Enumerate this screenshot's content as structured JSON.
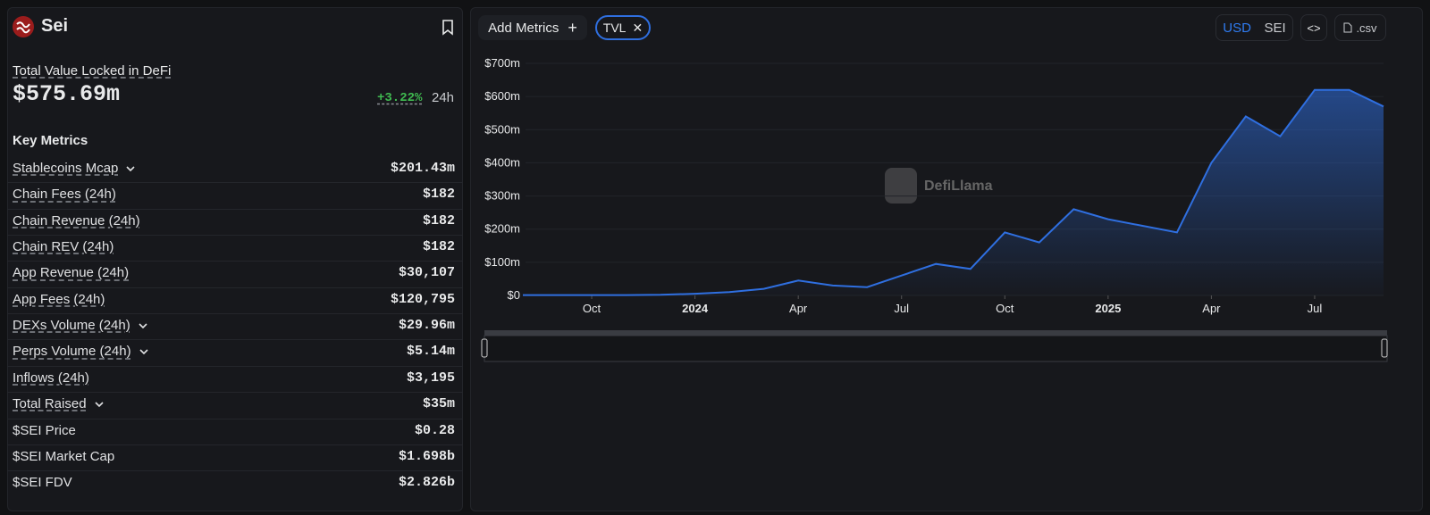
{
  "sidebar": {
    "name": "Sei",
    "tvl_label": "Total Value Locked in DeFi",
    "tvl": "$575.69m",
    "change": "+3.22%",
    "change_period": "24h",
    "section_title": "Key Metrics",
    "metrics": [
      {
        "label": "Stablecoins Mcap",
        "value": "$201.43m",
        "expandable": true,
        "underlined": true
      },
      {
        "label": "Chain Fees (24h)",
        "value": "$182",
        "expandable": false,
        "underlined": true
      },
      {
        "label": "Chain Revenue (24h)",
        "value": "$182",
        "expandable": false,
        "underlined": true
      },
      {
        "label": "Chain REV (24h)",
        "value": "$182",
        "expandable": false,
        "underlined": true
      },
      {
        "label": "App Revenue (24h)",
        "value": "$30,107",
        "expandable": false,
        "underlined": true
      },
      {
        "label": "App Fees (24h)",
        "value": "$120,795",
        "expandable": false,
        "underlined": true
      },
      {
        "label": "DEXs Volume (24h)",
        "value": "$29.96m",
        "expandable": true,
        "underlined": true
      },
      {
        "label": "Perps Volume (24h)",
        "value": "$5.14m",
        "expandable": true,
        "underlined": true
      },
      {
        "label": "Inflows (24h)",
        "value": "$3,195",
        "expandable": false,
        "underlined": true
      },
      {
        "label": "Total Raised",
        "value": "$35m",
        "expandable": true,
        "underlined": true
      },
      {
        "label": "$SEI Price",
        "value": "$0.28",
        "expandable": false,
        "underlined": false
      },
      {
        "label": "$SEI Market Cap",
        "value": "$1.698b",
        "expandable": false,
        "underlined": false
      },
      {
        "label": "$SEI FDV",
        "value": "$2.826b",
        "expandable": false,
        "underlined": false
      }
    ]
  },
  "toolbar": {
    "add_metrics": "Add Metrics",
    "active_metric": "TVL",
    "currencies": [
      "USD",
      "SEI"
    ],
    "export": ".csv"
  },
  "watermark": "DefiLlama",
  "chart_data": {
    "type": "area",
    "x": [
      "2023-08",
      "2023-09",
      "2023-10",
      "2023-11",
      "2023-12",
      "2024-01",
      "2024-02",
      "2024-03",
      "2024-04",
      "2024-05",
      "2024-06",
      "2024-07",
      "2024-08",
      "2024-09",
      "2024-10",
      "2024-11",
      "2024-12",
      "2025-01",
      "2025-02",
      "2025-03",
      "2025-04",
      "2025-05",
      "2025-06",
      "2025-07",
      "2025-08",
      "2025-09"
    ],
    "series": [
      {
        "name": "TVL",
        "color": "#2f6fe0",
        "values": [
          1,
          1,
          1,
          1,
          2,
          5,
          10,
          20,
          45,
          30,
          25,
          60,
          95,
          80,
          190,
          160,
          260,
          230,
          210,
          190,
          400,
          540,
          480,
          620,
          620,
          570
        ]
      }
    ],
    "xlim": [
      "2023-08",
      "2025-09"
    ],
    "xticks": [
      {
        "value": "2023-10",
        "label": "Oct"
      },
      {
        "value": "2024-01",
        "label": "2024"
      },
      {
        "value": "2024-04",
        "label": "Apr"
      },
      {
        "value": "2024-07",
        "label": "Jul"
      },
      {
        "value": "2024-10",
        "label": "Oct"
      },
      {
        "value": "2025-01",
        "label": "2025"
      },
      {
        "value": "2025-04",
        "label": "Apr"
      },
      {
        "value": "2025-07",
        "label": "Jul"
      }
    ],
    "ylim": [
      0,
      700
    ],
    "yticks": [
      {
        "value": 0,
        "label": "$0"
      },
      {
        "value": 100,
        "label": "$100m"
      },
      {
        "value": 200,
        "label": "$200m"
      },
      {
        "value": 300,
        "label": "$300m"
      },
      {
        "value": 400,
        "label": "$400m"
      },
      {
        "value": 500,
        "label": "$500m"
      },
      {
        "value": 600,
        "label": "$600m"
      },
      {
        "value": 700,
        "label": "$700m"
      }
    ],
    "grid": true
  }
}
